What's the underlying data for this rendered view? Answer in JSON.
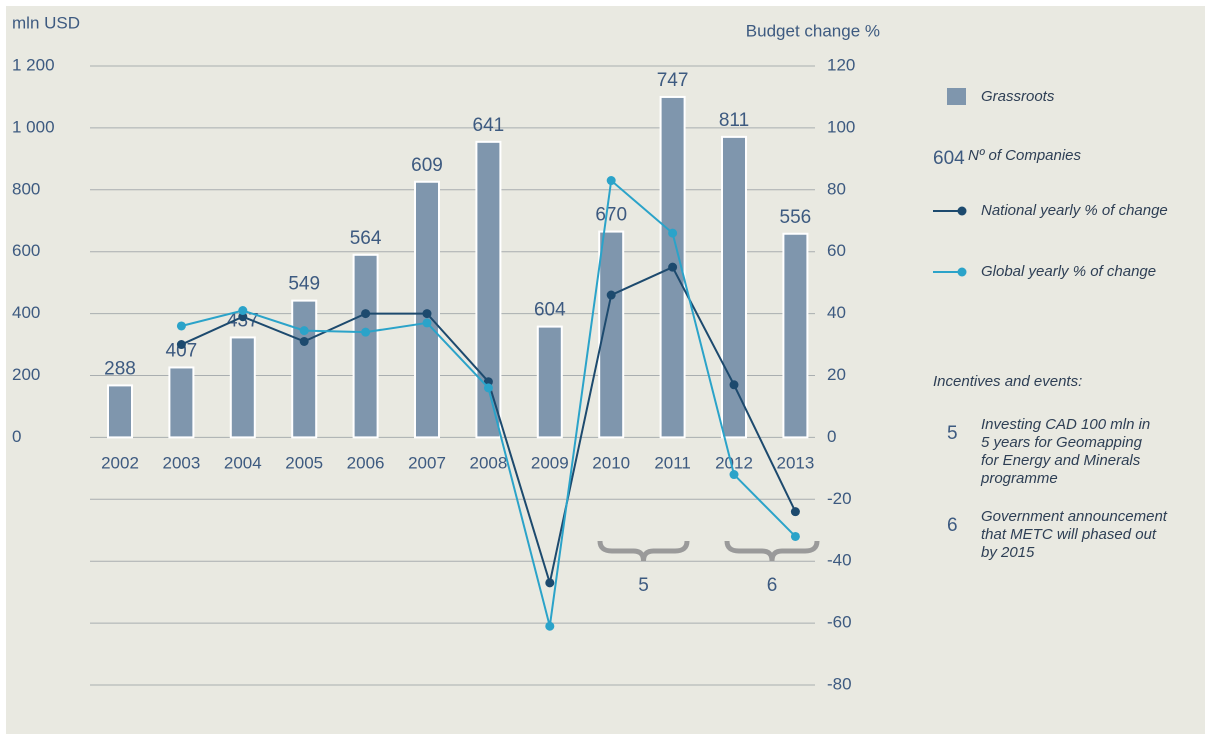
{
  "chart_data": {
    "type": "bar-line",
    "ylabel": "mln USD",
    "y2label": "Budget change %",
    "categories": [
      "2002",
      "2003",
      "2004",
      "2005",
      "2006",
      "2007",
      "2008",
      "2009",
      "2010",
      "2011",
      "2012",
      "2013"
    ],
    "ylim": [
      -800,
      1200
    ],
    "yticks": [
      0,
      200,
      400,
      600,
      800,
      {
        "value": 1000,
        "label": "1 000"
      },
      {
        "value": 1200,
        "label": "1 200"
      }
    ],
    "y2lim": [
      -80,
      120
    ],
    "y2ticks": [
      -80,
      -60,
      -40,
      -20,
      0,
      20,
      40,
      60,
      80,
      100,
      120
    ],
    "grid": true,
    "series": [
      {
        "name": "Grassroots",
        "type": "bar",
        "color": "#7f96ad",
        "values": [
          168,
          226,
          323,
          442,
          590,
          826,
          955,
          358,
          665,
          1100,
          971,
          658
        ],
        "value_labels": [
          "288",
          "407",
          "437",
          "549",
          "564",
          "609",
          "641",
          "604",
          "670",
          "747",
          "811",
          "556"
        ]
      },
      {
        "name": "National yearly % of change",
        "type": "line",
        "axis": "y2",
        "color": "#1d4a6e",
        "values": [
          null,
          30,
          39,
          31,
          40,
          40,
          18,
          -47,
          46,
          55,
          17,
          -24
        ]
      },
      {
        "name": "Global yearly % of change",
        "type": "line",
        "axis": "y2",
        "color": "#2ba3c9",
        "values": [
          null,
          36,
          41,
          34.5,
          34,
          37,
          16,
          -61,
          83,
          66,
          -12,
          -32
        ]
      }
    ],
    "label_legend": {
      "sample": "604",
      "text": "Nº of Companies"
    },
    "events_title": "Incentives and events:",
    "annotations": [
      {
        "label": "5",
        "text": "Investing CAD 100 mln in 5 years for Geomapping for Energy and Minerals programme"
      },
      {
        "label": "6",
        "text": "Government announcement that METC will phased out by 2015"
      }
    ]
  }
}
